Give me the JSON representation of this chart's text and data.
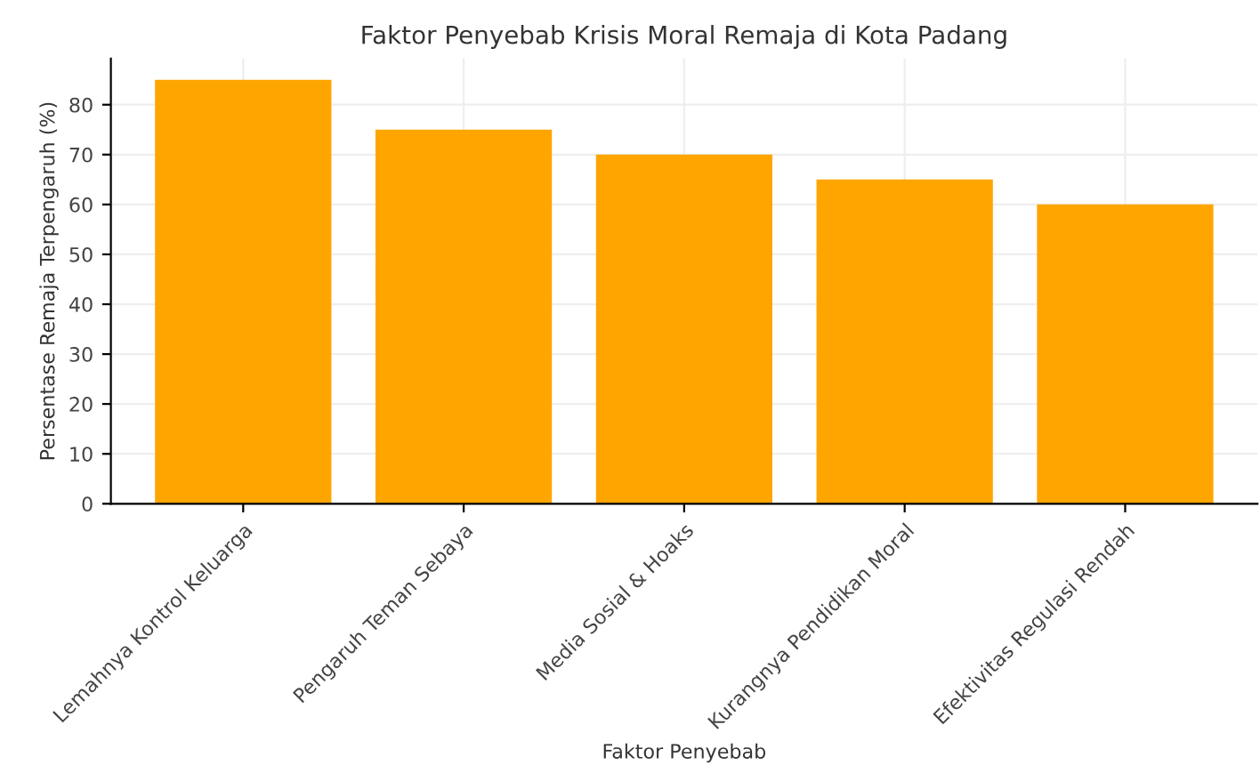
{
  "chart_data": {
    "type": "bar",
    "title": "Faktor Penyebab Krisis Moral Remaja di Kota Padang",
    "xlabel": "Faktor Penyebab",
    "ylabel": "Persentase Remaja Terpengaruh (%)",
    "categories": [
      "Lemahnya Kontrol Keluarga",
      "Pengaruh Teman Sebaya",
      "Media Sosial & Hoaks",
      "Kurangnya Pendidikan Moral",
      "Efektivitas Regulasi Rendah"
    ],
    "values": [
      85,
      75,
      70,
      65,
      60
    ],
    "color": "#ffa500",
    "ylim": [
      0,
      89.25
    ],
    "yticks": [
      0,
      10,
      20,
      30,
      40,
      50,
      60,
      70,
      80
    ],
    "grid": true
  }
}
